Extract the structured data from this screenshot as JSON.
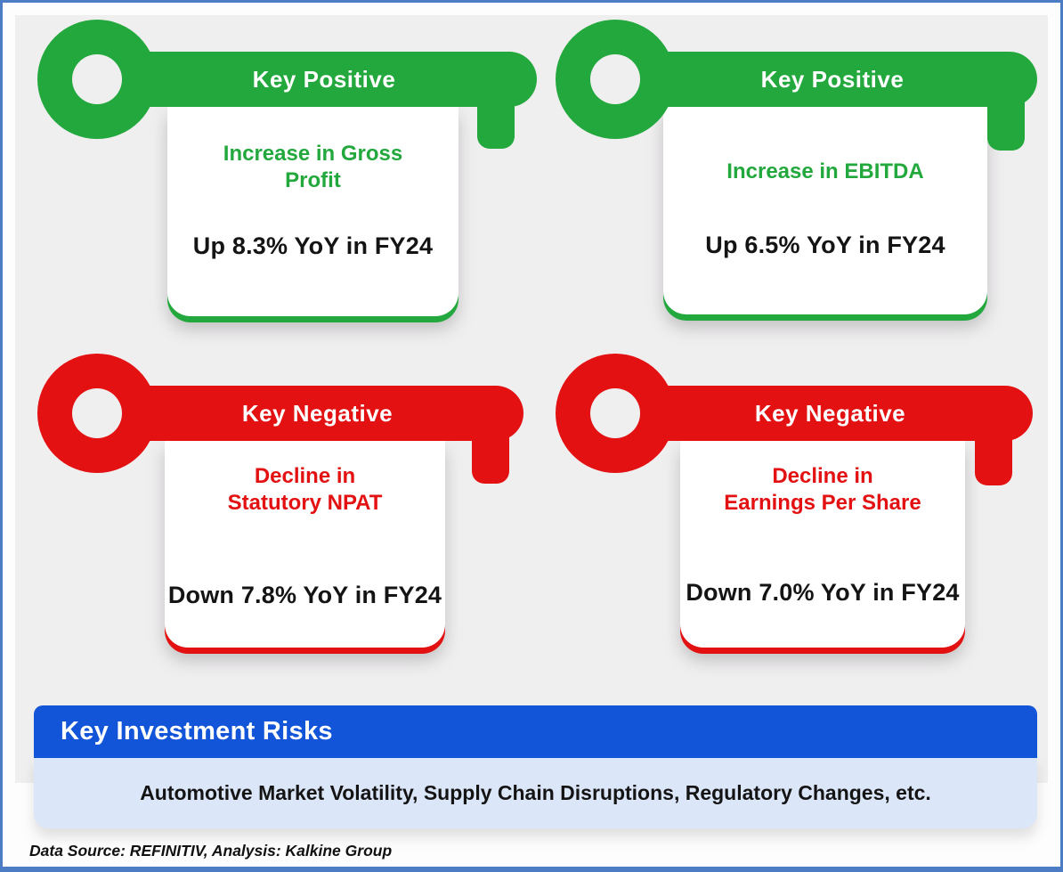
{
  "colors": {
    "canvas_bg": "#f0eff0",
    "page_bg": "#fdfdfd",
    "frame_border_blue": "#4b7cc4",
    "positive_green": "#22a83c",
    "negative_red": "#e31111",
    "risks_header_blue": "#1355d8",
    "risks_body_light_blue": "#dce6f9",
    "text_dark": "#141414",
    "text_white": "#ffffff"
  },
  "cards": [
    {
      "position": "top-left",
      "sentiment": "positive",
      "key_label": "Key Positive",
      "title_lines": [
        "Increase in Gross",
        "Profit"
      ],
      "value": "Up 8.3% YoY in FY24"
    },
    {
      "position": "top-right",
      "sentiment": "positive",
      "key_label": "Key Positive",
      "title_lines": [
        "Increase in EBITDA"
      ],
      "value": "Up 6.5% YoY in FY24"
    },
    {
      "position": "bottom-left",
      "sentiment": "negative",
      "key_label": "Key Negative",
      "title_lines": [
        "Decline in",
        "Statutory NPAT"
      ],
      "value": "Down 7.8% YoY in FY24"
    },
    {
      "position": "bottom-right",
      "sentiment": "negative",
      "key_label": "Key Negative",
      "title_lines": [
        "Decline in",
        "Earnings Per Share"
      ],
      "value": "Down 7.0% YoY in FY24"
    }
  ],
  "risks": {
    "header": "Key Investment Risks",
    "items_text": "Automotive Market Volatility, Supply Chain Disruptions, Regulatory Changes, etc."
  },
  "footer": {
    "note": "Data Source: REFINITIV, Analysis: Kalkine Group"
  }
}
